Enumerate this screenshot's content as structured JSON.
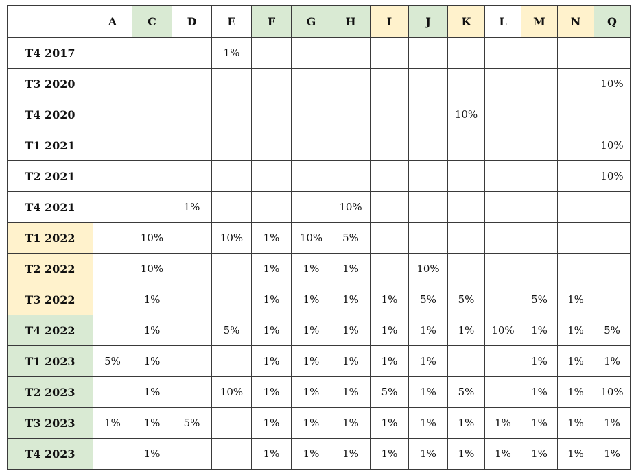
{
  "corner_label": "",
  "columns": [
    {
      "label": "A",
      "highlight": "none"
    },
    {
      "label": "C",
      "highlight": "green"
    },
    {
      "label": "D",
      "highlight": "none"
    },
    {
      "label": "E",
      "highlight": "none"
    },
    {
      "label": "F",
      "highlight": "green"
    },
    {
      "label": "G",
      "highlight": "green"
    },
    {
      "label": "H",
      "highlight": "green"
    },
    {
      "label": "I",
      "highlight": "yellow"
    },
    {
      "label": "J",
      "highlight": "green"
    },
    {
      "label": "K",
      "highlight": "yellow"
    },
    {
      "label": "L",
      "highlight": "none"
    },
    {
      "label": "M",
      "highlight": "yellow"
    },
    {
      "label": "N",
      "highlight": "yellow"
    },
    {
      "label": "Q",
      "highlight": "green"
    }
  ],
  "rows": [
    {
      "label": "T4 2017",
      "highlight": "none",
      "cells": [
        "",
        "",
        "",
        "1%",
        "",
        "",
        "",
        "",
        "",
        "",
        "",
        "",
        "",
        ""
      ]
    },
    {
      "label": "T3 2020",
      "highlight": "none",
      "cells": [
        "",
        "",
        "",
        "",
        "",
        "",
        "",
        "",
        "",
        "",
        "",
        "",
        "",
        "10%"
      ]
    },
    {
      "label": "T4 2020",
      "highlight": "none",
      "cells": [
        "",
        "",
        "",
        "",
        "",
        "",
        "",
        "",
        "",
        "10%",
        "",
        "",
        "",
        ""
      ]
    },
    {
      "label": "T1 2021",
      "highlight": "none",
      "cells": [
        "",
        "",
        "",
        "",
        "",
        "",
        "",
        "",
        "",
        "",
        "",
        "",
        "",
        "10%"
      ]
    },
    {
      "label": "T2 2021",
      "highlight": "none",
      "cells": [
        "",
        "",
        "",
        "",
        "",
        "",
        "",
        "",
        "",
        "",
        "",
        "",
        "",
        "10%"
      ]
    },
    {
      "label": "T4 2021",
      "highlight": "none",
      "cells": [
        "",
        "",
        "1%",
        "",
        "",
        "",
        "10%",
        "",
        "",
        "",
        "",
        "",
        "",
        ""
      ]
    },
    {
      "label": "T1 2022",
      "highlight": "yellow",
      "cells": [
        "",
        "10%",
        "",
        "10%",
        "1%",
        "10%",
        "5%",
        "",
        "",
        "",
        "",
        "",
        "",
        ""
      ]
    },
    {
      "label": "T2 2022",
      "highlight": "yellow",
      "cells": [
        "",
        "10%",
        "",
        "",
        "1%",
        "1%",
        "1%",
        "",
        "10%",
        "",
        "",
        "",
        "",
        ""
      ]
    },
    {
      "label": "T3 2022",
      "highlight": "yellow",
      "cells": [
        "",
        "1%",
        "",
        "",
        "1%",
        "1%",
        "1%",
        "1%",
        "5%",
        "5%",
        "",
        "5%",
        "1%",
        ""
      ]
    },
    {
      "label": "T4 2022",
      "highlight": "green",
      "cells": [
        "",
        "1%",
        "",
        "5%",
        "1%",
        "1%",
        "1%",
        "1%",
        "1%",
        "1%",
        "10%",
        "1%",
        "1%",
        "5%"
      ]
    },
    {
      "label": "T1 2023",
      "highlight": "green",
      "cells": [
        "5%",
        "1%",
        "",
        "",
        "1%",
        "1%",
        "1%",
        "1%",
        "1%",
        "",
        "",
        "1%",
        "1%",
        "1%"
      ]
    },
    {
      "label": "T2 2023",
      "highlight": "green",
      "cells": [
        "",
        "1%",
        "",
        "10%",
        "1%",
        "1%",
        "1%",
        "5%",
        "1%",
        "5%",
        "",
        "1%",
        "1%",
        "10%"
      ]
    },
    {
      "label": "T3 2023",
      "highlight": "green",
      "cells": [
        "1%",
        "1%",
        "5%",
        "",
        "1%",
        "1%",
        "1%",
        "1%",
        "1%",
        "1%",
        "1%",
        "1%",
        "1%",
        "1%"
      ]
    },
    {
      "label": "T4 2023",
      "highlight": "green",
      "cells": [
        "",
        "1%",
        "",
        "",
        "1%",
        "1%",
        "1%",
        "1%",
        "1%",
        "1%",
        "1%",
        "1%",
        "1%",
        "1%"
      ]
    }
  ],
  "colors": {
    "green": "#d9ead3",
    "yellow": "#fff2cc",
    "border": "#3a3a3a"
  }
}
